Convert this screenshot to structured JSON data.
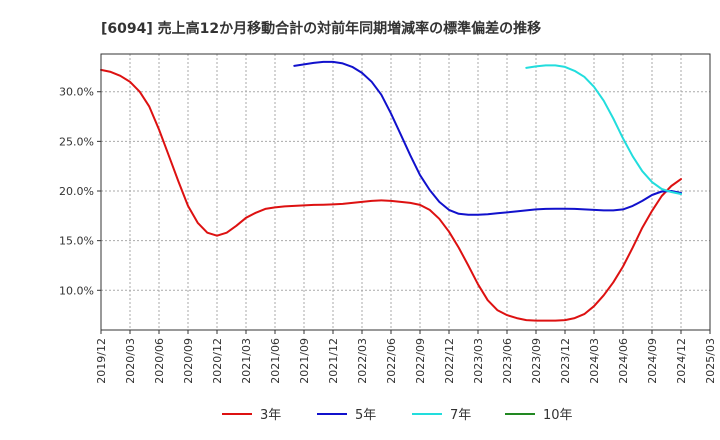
{
  "chart_data": {
    "type": "line",
    "title": "[6094]  売上高12か月移動合計の対前年同期増減率の標準偏差の推移",
    "xlabel": "",
    "ylabel": "",
    "ylim": [
      6.0,
      33.8
    ],
    "xlim": [
      "2019/12",
      "2025/03"
    ],
    "grid": true,
    "legend_position": "bottom",
    "x_ticks": [
      "2019/12",
      "2020/03",
      "2020/06",
      "2020/09",
      "2020/12",
      "2021/03",
      "2021/06",
      "2021/09",
      "2021/12",
      "2022/03",
      "2022/06",
      "2022/09",
      "2022/12",
      "2023/03",
      "2023/06",
      "2023/09",
      "2023/12",
      "2024/03",
      "2024/06",
      "2024/09",
      "2024/12",
      "2025/03"
    ],
    "y_ticks": [
      {
        "value": 10,
        "label": "10.0%"
      },
      {
        "value": 15,
        "label": "15.0%"
      },
      {
        "value": 20,
        "label": "20.0%"
      },
      {
        "value": 25,
        "label": "25.0%"
      },
      {
        "value": 30,
        "label": "30.0%"
      }
    ],
    "series": [
      {
        "name": "3年",
        "color": "#dd1111",
        "points": [
          [
            "2019/12",
            32.2
          ],
          [
            "2020/01",
            32.0
          ],
          [
            "2020/02",
            31.6
          ],
          [
            "2020/03",
            31.0
          ],
          [
            "2020/04",
            30.0
          ],
          [
            "2020/05",
            28.5
          ],
          [
            "2020/06",
            26.2
          ],
          [
            "2020/07",
            23.6
          ],
          [
            "2020/08",
            21.0
          ],
          [
            "2020/09",
            18.5
          ],
          [
            "2020/10",
            16.8
          ],
          [
            "2020/11",
            15.8
          ],
          [
            "2020/12",
            15.5
          ],
          [
            "2021/01",
            15.8
          ],
          [
            "2021/02",
            16.5
          ],
          [
            "2021/03",
            17.3
          ],
          [
            "2021/04",
            17.8
          ],
          [
            "2021/05",
            18.2
          ],
          [
            "2021/06",
            18.35
          ],
          [
            "2021/07",
            18.45
          ],
          [
            "2021/08",
            18.5
          ],
          [
            "2021/09",
            18.55
          ],
          [
            "2021/10",
            18.6
          ],
          [
            "2021/11",
            18.62
          ],
          [
            "2021/12",
            18.65
          ],
          [
            "2022/01",
            18.7
          ],
          [
            "2022/02",
            18.8
          ],
          [
            "2022/03",
            18.9
          ],
          [
            "2022/04",
            19.0
          ],
          [
            "2022/05",
            19.05
          ],
          [
            "2022/06",
            19.0
          ],
          [
            "2022/07",
            18.9
          ],
          [
            "2022/08",
            18.8
          ],
          [
            "2022/09",
            18.6
          ],
          [
            "2022/10",
            18.1
          ],
          [
            "2022/11",
            17.2
          ],
          [
            "2022/12",
            15.9
          ],
          [
            "2023/01",
            14.3
          ],
          [
            "2023/02",
            12.5
          ],
          [
            "2023/03",
            10.6
          ],
          [
            "2023/04",
            9.0
          ],
          [
            "2023/05",
            8.0
          ],
          [
            "2023/06",
            7.5
          ],
          [
            "2023/07",
            7.2
          ],
          [
            "2023/08",
            7.0
          ],
          [
            "2023/09",
            6.95
          ],
          [
            "2023/10",
            6.95
          ],
          [
            "2023/11",
            6.95
          ],
          [
            "2023/12",
            7.0
          ],
          [
            "2024/01",
            7.2
          ],
          [
            "2024/02",
            7.6
          ],
          [
            "2024/03",
            8.4
          ],
          [
            "2024/04",
            9.5
          ],
          [
            "2024/05",
            10.8
          ],
          [
            "2024/06",
            12.4
          ],
          [
            "2024/07",
            14.3
          ],
          [
            "2024/08",
            16.3
          ],
          [
            "2024/09",
            18.0
          ],
          [
            "2024/10",
            19.5
          ],
          [
            "2024/11",
            20.5
          ],
          [
            "2024/12",
            21.2
          ]
        ]
      },
      {
        "name": "5年",
        "color": "#1111cc",
        "points": [
          [
            "2021/08",
            32.6
          ],
          [
            "2021/09",
            32.75
          ],
          [
            "2021/10",
            32.9
          ],
          [
            "2021/11",
            33.0
          ],
          [
            "2021/12",
            33.0
          ],
          [
            "2022/01",
            32.85
          ],
          [
            "2022/02",
            32.5
          ],
          [
            "2022/03",
            31.9
          ],
          [
            "2022/04",
            31.0
          ],
          [
            "2022/05",
            29.7
          ],
          [
            "2022/06",
            27.8
          ],
          [
            "2022/07",
            25.7
          ],
          [
            "2022/08",
            23.6
          ],
          [
            "2022/09",
            21.6
          ],
          [
            "2022/10",
            20.1
          ],
          [
            "2022/11",
            18.9
          ],
          [
            "2022/12",
            18.1
          ],
          [
            "2023/01",
            17.7
          ],
          [
            "2023/02",
            17.6
          ],
          [
            "2023/03",
            17.6
          ],
          [
            "2023/04",
            17.65
          ],
          [
            "2023/05",
            17.75
          ],
          [
            "2023/06",
            17.85
          ],
          [
            "2023/07",
            17.95
          ],
          [
            "2023/08",
            18.05
          ],
          [
            "2023/09",
            18.15
          ],
          [
            "2023/10",
            18.2
          ],
          [
            "2023/11",
            18.22
          ],
          [
            "2023/12",
            18.22
          ],
          [
            "2024/01",
            18.2
          ],
          [
            "2024/02",
            18.15
          ],
          [
            "2024/03",
            18.1
          ],
          [
            "2024/04",
            18.05
          ],
          [
            "2024/05",
            18.05
          ],
          [
            "2024/06",
            18.15
          ],
          [
            "2024/07",
            18.5
          ],
          [
            "2024/08",
            19.0
          ],
          [
            "2024/09",
            19.6
          ],
          [
            "2024/10",
            19.95
          ],
          [
            "2024/11",
            20.0
          ],
          [
            "2024/12",
            19.8
          ]
        ]
      },
      {
        "name": "7年",
        "color": "#22dddd",
        "points": [
          [
            "2023/08",
            32.4
          ],
          [
            "2023/09",
            32.55
          ],
          [
            "2023/10",
            32.65
          ],
          [
            "2023/11",
            32.65
          ],
          [
            "2023/12",
            32.5
          ],
          [
            "2024/01",
            32.1
          ],
          [
            "2024/02",
            31.5
          ],
          [
            "2024/03",
            30.5
          ],
          [
            "2024/04",
            29.1
          ],
          [
            "2024/05",
            27.3
          ],
          [
            "2024/06",
            25.3
          ],
          [
            "2024/07",
            23.5
          ],
          [
            "2024/08",
            22.0
          ],
          [
            "2024/09",
            20.9
          ],
          [
            "2024/10",
            20.2
          ],
          [
            "2024/11",
            19.9
          ],
          [
            "2024/12",
            19.7
          ]
        ]
      },
      {
        "name": "10年",
        "color": "#228822",
        "points": []
      }
    ]
  }
}
